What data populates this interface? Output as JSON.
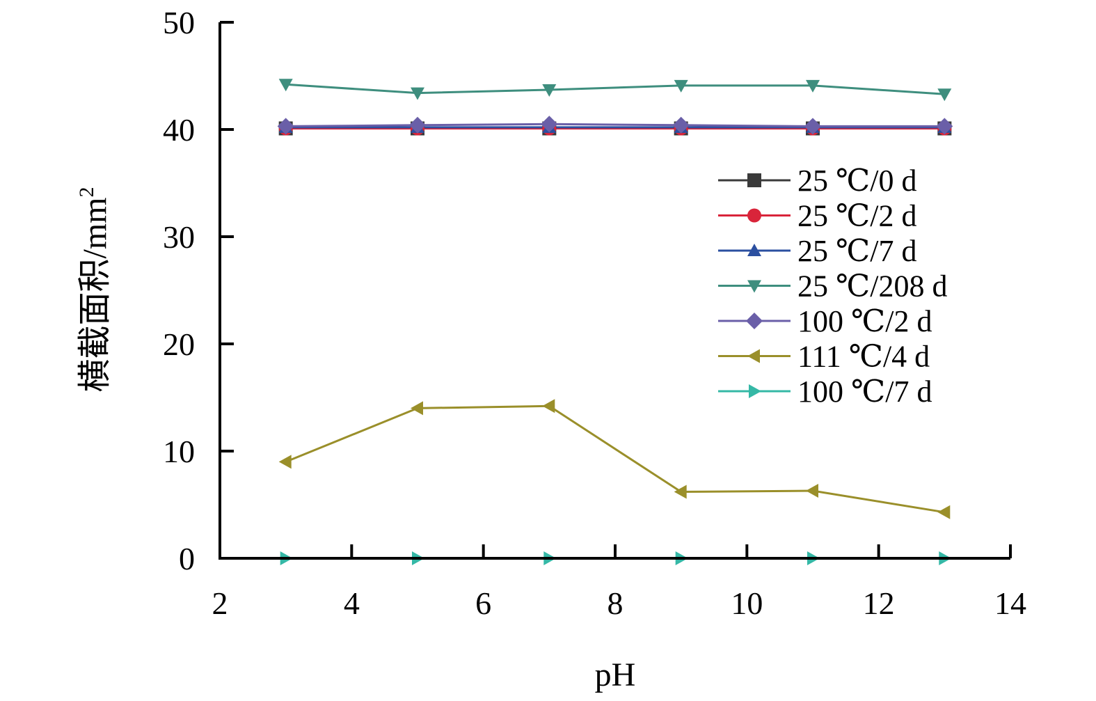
{
  "chart_data": {
    "type": "line",
    "title": "",
    "xlabel": "pH",
    "ylabel": "横截面积/mm",
    "ylabel_sup": "2",
    "xlim": [
      2,
      14
    ],
    "ylim": [
      0,
      50
    ],
    "xticks": [
      2,
      4,
      6,
      8,
      10,
      12,
      14
    ],
    "yticks": [
      0,
      10,
      20,
      30,
      40,
      50
    ],
    "grid": false,
    "legend_position": "right",
    "x": [
      3,
      5,
      7,
      9,
      11,
      13
    ],
    "series": [
      {
        "name": "25 ℃/0 d",
        "color": "#3a3a3a",
        "marker": "square",
        "values": [
          40.1,
          40.1,
          40.1,
          40.1,
          40.1,
          40.1
        ]
      },
      {
        "name": "25 ℃/2 d",
        "color": "#d9243a",
        "marker": "circle",
        "values": [
          40.1,
          40.1,
          40.1,
          40.1,
          40.1,
          40.1
        ]
      },
      {
        "name": "25 ℃/7 d",
        "color": "#2b4fa0",
        "marker": "triangle-up",
        "values": [
          40.2,
          40.2,
          40.2,
          40.2,
          40.2,
          40.2
        ]
      },
      {
        "name": "25 ℃/208 d",
        "color": "#3e8e7e",
        "marker": "triangle-down",
        "values": [
          44.2,
          43.4,
          43.7,
          44.1,
          44.1,
          43.3
        ]
      },
      {
        "name": "100 ℃/2 d",
        "color": "#6a5fa8",
        "marker": "diamond",
        "values": [
          40.3,
          40.4,
          40.5,
          40.4,
          40.3,
          40.3
        ]
      },
      {
        "name": "111 ℃/4 d",
        "color": "#9a8f2a",
        "marker": "triangle-left",
        "values": [
          9.0,
          14.0,
          14.2,
          6.2,
          6.3,
          4.3
        ]
      },
      {
        "name": "100 ℃/7 d",
        "color": "#35b8a6",
        "marker": "triangle-right",
        "values": [
          0,
          0,
          0,
          0,
          0,
          0
        ]
      }
    ]
  }
}
